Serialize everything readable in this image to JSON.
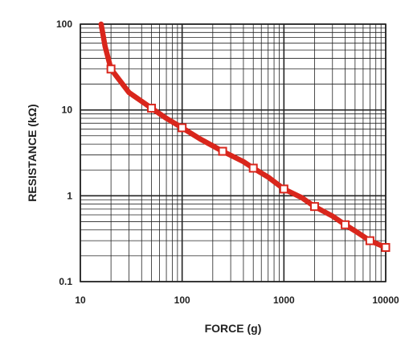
{
  "chart_data": {
    "type": "line",
    "title": "",
    "xlabel": "FORCE (g)",
    "ylabel": "RESISTANCE (kΩ)",
    "xscale": "log",
    "yscale": "log",
    "xlim": [
      10,
      10000
    ],
    "ylim": [
      0.1,
      100
    ],
    "grid": true,
    "legend": "none",
    "x_tick_labels": [
      "10",
      "100",
      "1000",
      "10000"
    ],
    "y_tick_labels": [
      "0.1",
      "1",
      "10",
      "100"
    ],
    "colors": {
      "line": "#d9261c",
      "marker_fill": "#ffffff",
      "grid": "#222222"
    },
    "series": [
      {
        "curve_x": [
          16,
          17.5,
          20,
          30,
          50,
          70,
          100,
          150,
          250,
          400,
          500,
          700,
          1000,
          1500,
          2000,
          3000,
          4000,
          5000,
          7000,
          10000
        ],
        "curve_y": [
          100,
          55,
          30,
          16,
          10.5,
          8,
          6.2,
          4.6,
          3.3,
          2.5,
          2.1,
          1.65,
          1.2,
          0.95,
          0.75,
          0.58,
          0.46,
          0.39,
          0.3,
          0.25
        ],
        "markers_x": [
          20,
          50,
          100,
          250,
          500,
          1000,
          2000,
          4000,
          7000,
          10000
        ],
        "markers_y": [
          30,
          10.5,
          6.2,
          3.3,
          2.1,
          1.2,
          0.75,
          0.46,
          0.3,
          0.25
        ]
      }
    ]
  }
}
